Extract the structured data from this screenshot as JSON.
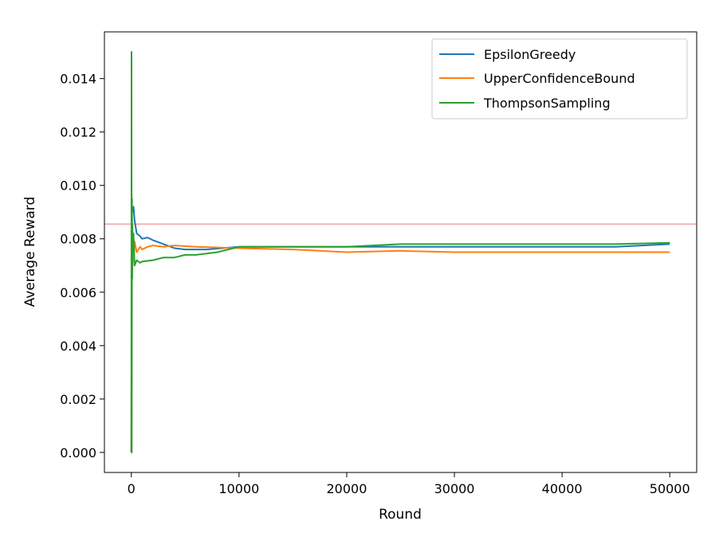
{
  "chart_data": {
    "type": "line",
    "xlabel": "Round",
    "ylabel": "Average Reward",
    "xlim": [
      -2500,
      52500
    ],
    "ylim": [
      -0.00075,
      0.01575
    ],
    "x_ticks": [
      0,
      10000,
      20000,
      30000,
      40000,
      50000
    ],
    "x_tick_labels": [
      "0",
      "10000",
      "20000",
      "30000",
      "40000",
      "50000"
    ],
    "y_ticks": [
      0.0,
      0.002,
      0.004,
      0.006,
      0.008,
      0.01,
      0.012,
      0.014
    ],
    "y_tick_labels": [
      "0.000",
      "0.002",
      "0.004",
      "0.006",
      "0.008",
      "0.010",
      "0.012",
      "0.014"
    ],
    "grid": false,
    "legend_position": "top-right",
    "reference_line": {
      "y": 0.00855,
      "color": "#f4a3a3"
    },
    "series": [
      {
        "name": "EpsilonGreedy",
        "color": "#1f77b4",
        "x": [
          0,
          50,
          100,
          200,
          300,
          500,
          800,
          1000,
          1500,
          2000,
          3000,
          4000,
          5000,
          7000,
          10000,
          15000,
          20000,
          25000,
          30000,
          35000,
          40000,
          45000,
          50000
        ],
        "y": [
          0.0,
          0.0093,
          0.009,
          0.0092,
          0.0087,
          0.0082,
          0.0081,
          0.008,
          0.00805,
          0.00795,
          0.0078,
          0.00765,
          0.0076,
          0.0076,
          0.0077,
          0.0077,
          0.0077,
          0.0077,
          0.0077,
          0.0077,
          0.0077,
          0.0077,
          0.0078
        ]
      },
      {
        "name": "UpperConfidenceBound",
        "color": "#ff7f0e",
        "x": [
          0,
          30,
          60,
          100,
          150,
          200,
          300,
          500,
          800,
          1000,
          1500,
          2000,
          3000,
          4000,
          6000,
          10000,
          15000,
          20000,
          25000,
          30000,
          35000,
          40000,
          45000,
          50000
        ],
        "y": [
          0.0,
          0.0066,
          0.0075,
          0.0068,
          0.0078,
          0.0072,
          0.0079,
          0.0075,
          0.0077,
          0.0076,
          0.0077,
          0.00775,
          0.0077,
          0.00775,
          0.0077,
          0.00765,
          0.0076,
          0.0075,
          0.00755,
          0.0075,
          0.0075,
          0.0075,
          0.0075,
          0.0075
        ]
      },
      {
        "name": "ThompsonSampling",
        "color": "#2ca02c",
        "x": [
          0,
          20,
          40,
          60,
          80,
          100,
          150,
          200,
          300,
          500,
          800,
          1000,
          2000,
          3000,
          4000,
          5000,
          6000,
          8000,
          10000,
          15000,
          20000,
          25000,
          30000,
          35000,
          40000,
          45000,
          50000
        ],
        "y": [
          0.0,
          0.015,
          0.0,
          0.0095,
          0.0065,
          0.0085,
          0.0075,
          0.0082,
          0.007,
          0.0072,
          0.0071,
          0.00715,
          0.0072,
          0.0073,
          0.0073,
          0.0074,
          0.0074,
          0.0075,
          0.0077,
          0.0077,
          0.0077,
          0.0078,
          0.0078,
          0.0078,
          0.0078,
          0.0078,
          0.00785
        ]
      }
    ]
  }
}
